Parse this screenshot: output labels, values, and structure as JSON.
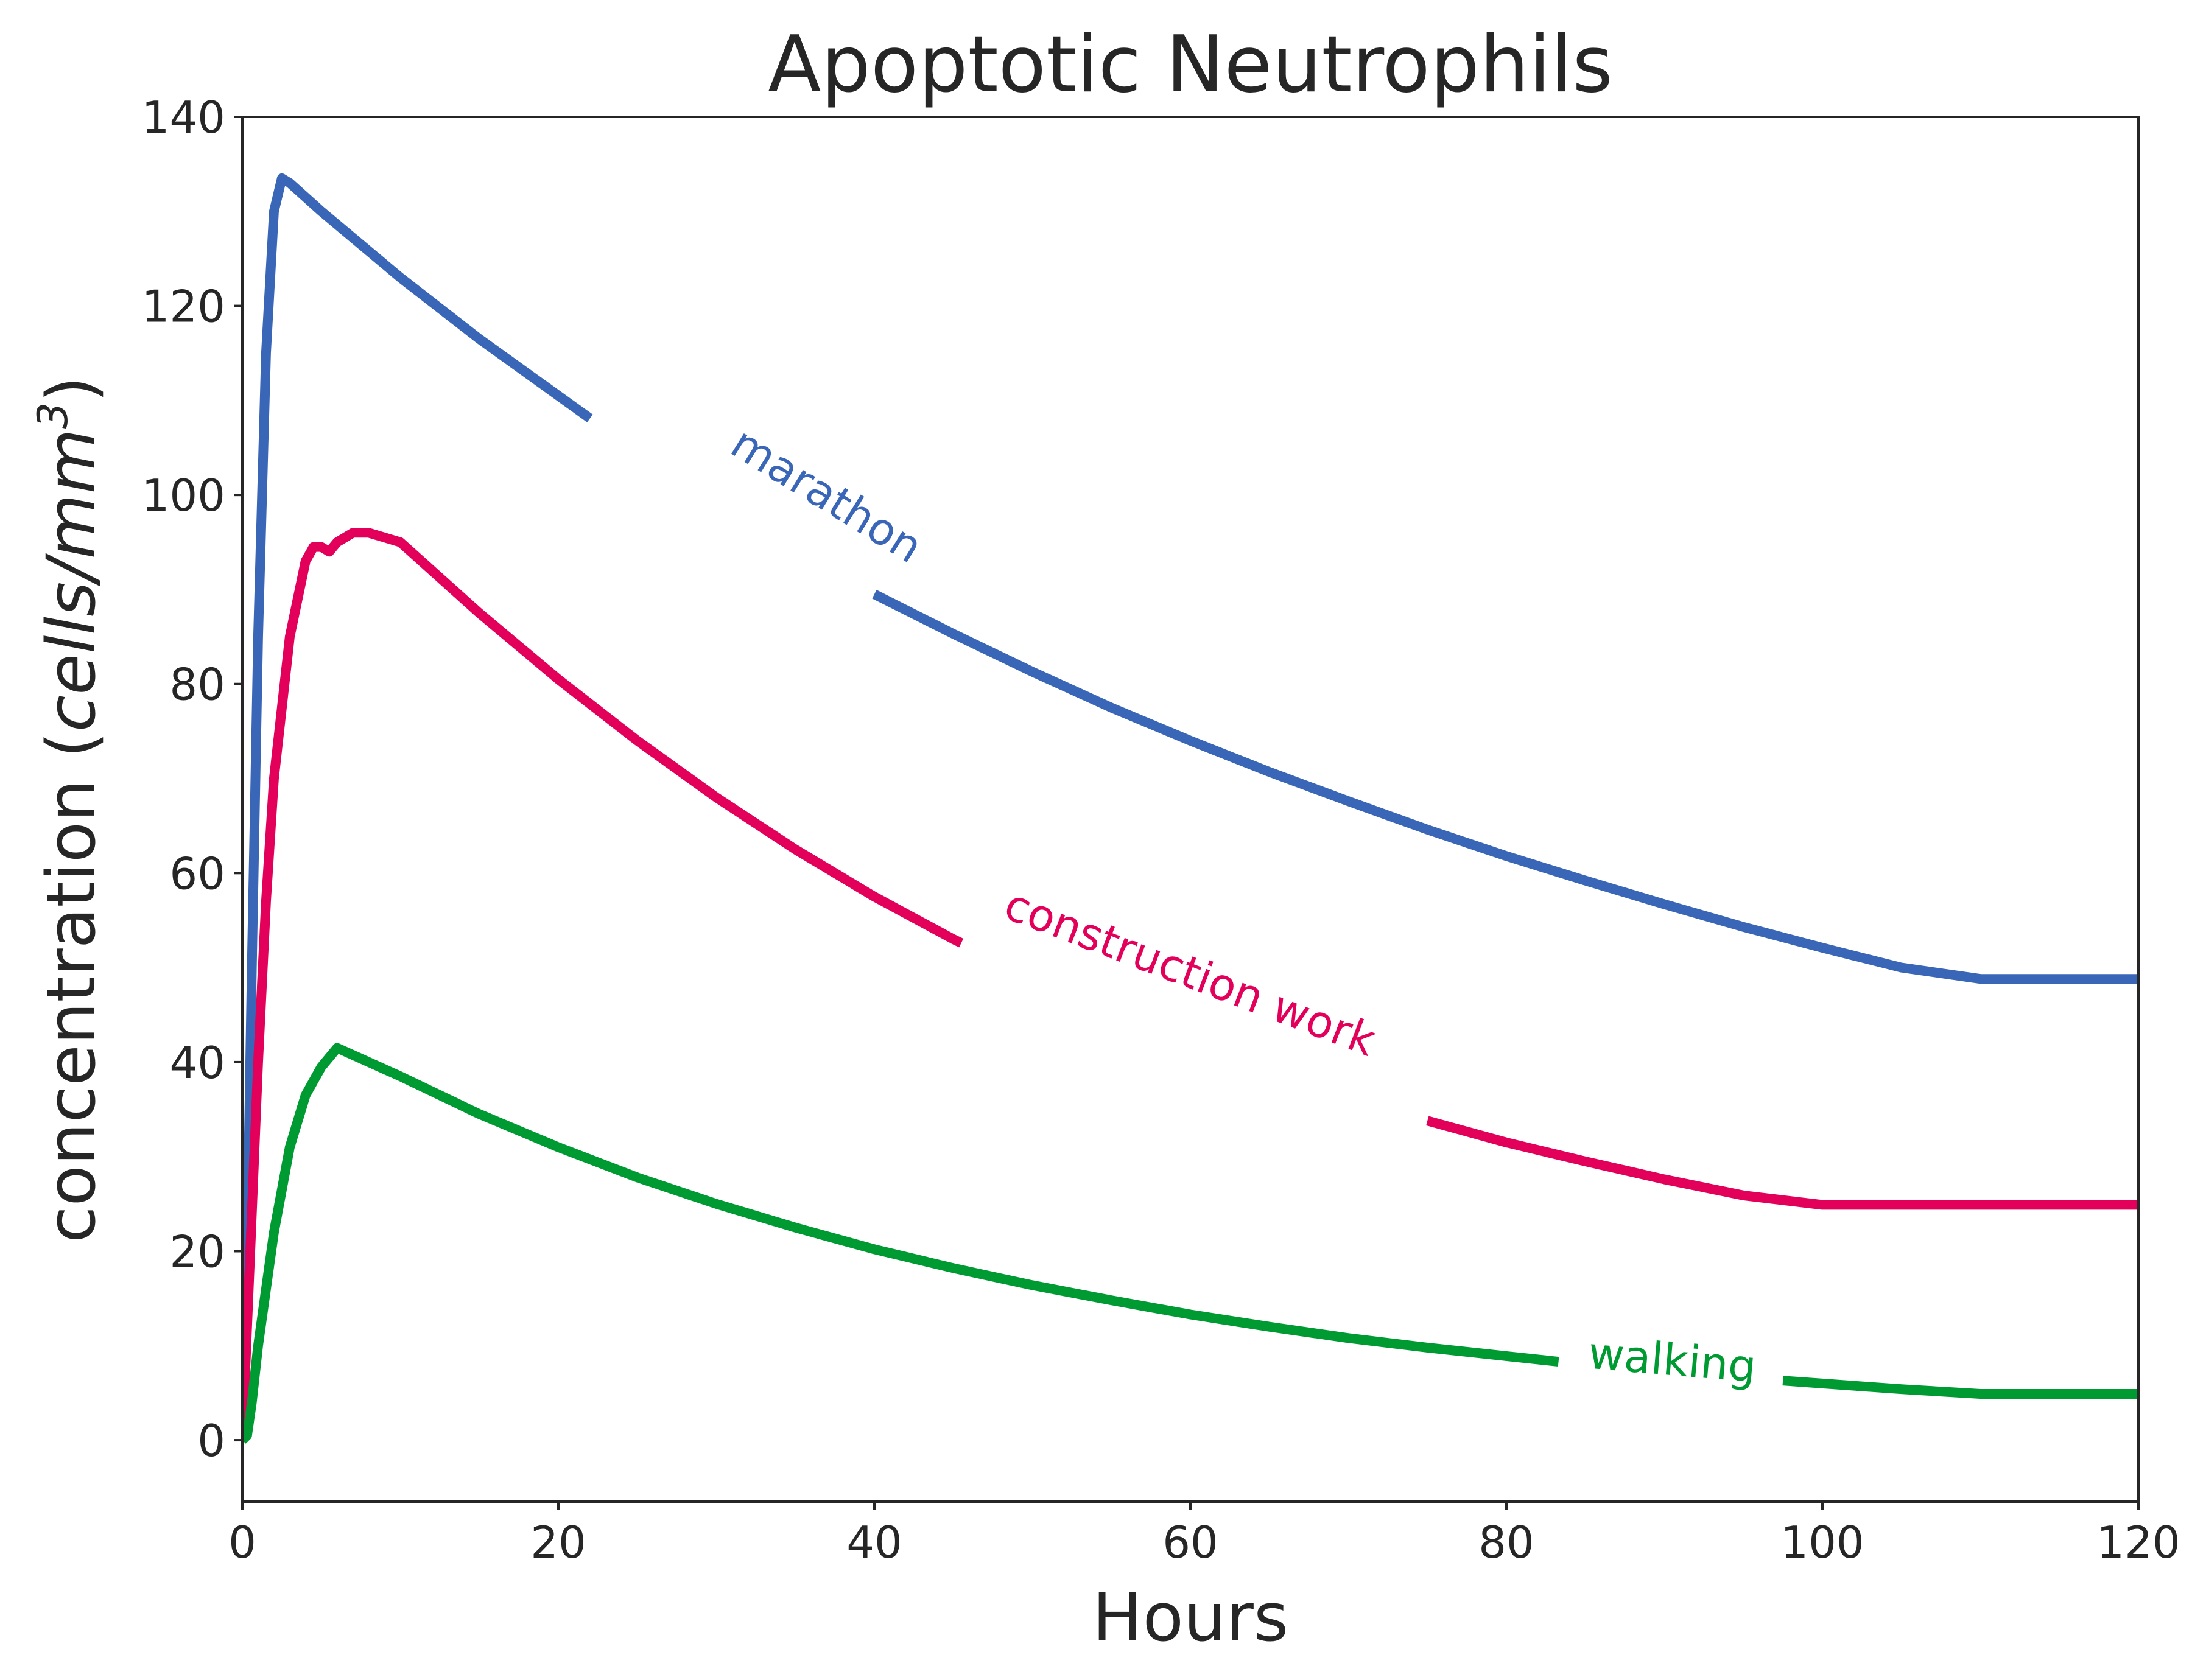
{
  "chart_data": {
    "type": "line",
    "title": "Apoptotic Neutrophils",
    "xlabel": "Hours",
    "ylabel": {
      "prefix": "concentration (",
      "italic": "cells/mm",
      "superscript": "3",
      "suffix": ")"
    },
    "xlim": [
      0,
      120
    ],
    "ylim": [
      -6.5,
      140
    ],
    "xticks": [
      0,
      20,
      40,
      60,
      80,
      100,
      120
    ],
    "yticks": [
      0,
      20,
      40,
      60,
      80,
      100,
      120,
      140
    ],
    "grid": false,
    "legend": "inline labels on lines",
    "series": [
      {
        "name": "marathon",
        "color": "#3a66b8",
        "label_position": [
          37,
          100
        ],
        "label_gap": [
          22,
          40
        ],
        "x": [
          0,
          0.3,
          0.6,
          1,
          1.5,
          2,
          2.5,
          3,
          5,
          10,
          15,
          20,
          25,
          30,
          35,
          40,
          45,
          50,
          55,
          60,
          65,
          70,
          75,
          80,
          85,
          90,
          95,
          100,
          105,
          110,
          115,
          120
        ],
        "y": [
          0,
          20,
          50,
          85,
          115,
          130,
          133.5,
          133,
          130,
          123,
          116.5,
          110.5,
          104.5,
          99,
          94,
          89.5,
          85.3,
          81.3,
          77.5,
          74,
          70.7,
          67.6,
          64.6,
          61.8,
          59.2,
          56.7,
          54.3,
          52.1,
          50,
          48.8,
          48.8,
          48.8
        ]
      },
      {
        "name": "construction work",
        "color": "#e2005a",
        "label_position": [
          60,
          49.5
        ],
        "label_gap": [
          45.5,
          75
        ],
        "x": [
          0,
          0.5,
          1,
          1.5,
          2,
          3,
          4,
          4.5,
          5,
          5.5,
          6,
          7,
          8,
          9,
          10,
          15,
          20,
          25,
          30,
          35,
          40,
          45,
          50,
          55,
          60,
          65,
          70,
          75,
          80,
          85,
          90,
          95,
          100,
          105,
          110,
          115,
          120
        ],
        "y": [
          0,
          20,
          40,
          57,
          70,
          85,
          93,
          94.5,
          94.5,
          94,
          95,
          96,
          96,
          95.5,
          95,
          87.5,
          80.5,
          74,
          68,
          62.5,
          57.5,
          53,
          49,
          45.3,
          42,
          39,
          36.3,
          33.8,
          31.5,
          29.5,
          27.6,
          25.9,
          24.9,
          24.9,
          24.9,
          24.9,
          24.9
        ]
      },
      {
        "name": "walking",
        "color": "#009a33",
        "label_position": [
          90.5,
          8.5
        ],
        "label_gap": [
          83.3,
          97.5
        ],
        "x": [
          0,
          0.3,
          0.6,
          1,
          2,
          3,
          4,
          5,
          6,
          10,
          15,
          20,
          25,
          30,
          35,
          40,
          45,
          50,
          55,
          60,
          65,
          70,
          75,
          80,
          85,
          90,
          95,
          100,
          105,
          110,
          115,
          120
        ],
        "y": [
          0,
          0.5,
          4,
          10,
          22,
          31,
          36.5,
          39.5,
          41.5,
          38.5,
          34.5,
          31,
          27.8,
          25,
          22.5,
          20.2,
          18.2,
          16.4,
          14.8,
          13.3,
          12,
          10.8,
          9.8,
          8.9,
          8,
          7.3,
          6.6,
          6,
          5.4,
          4.9,
          4.9,
          4.9
        ]
      }
    ]
  }
}
